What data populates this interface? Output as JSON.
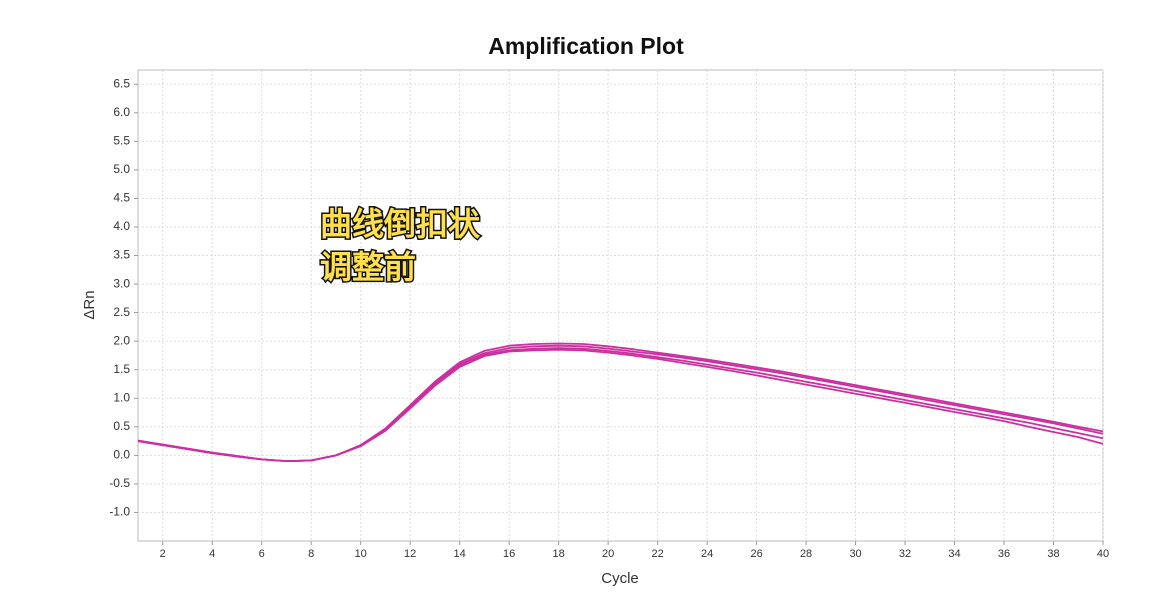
{
  "chart_data": {
    "type": "line",
    "title": "Amplification Plot",
    "xlabel": "Cycle",
    "ylabel": "ΔRn",
    "annotations": [
      "曲线倒扣状",
      "调整前"
    ],
    "x": [
      1,
      2,
      3,
      4,
      5,
      6,
      7,
      8,
      9,
      10,
      11,
      12,
      13,
      14,
      15,
      16,
      17,
      18,
      19,
      20,
      21,
      22,
      23,
      24,
      25,
      26,
      27,
      28,
      29,
      30,
      31,
      32,
      33,
      34,
      35,
      36,
      37,
      38,
      39,
      40
    ],
    "series": [
      {
        "color": "#cc2fa0",
        "values": [
          0.26,
          0.19,
          0.12,
          0.05,
          -0.01,
          -0.07,
          -0.1,
          -0.09,
          0.0,
          0.18,
          0.47,
          0.88,
          1.29,
          1.63,
          1.83,
          1.92,
          1.95,
          1.96,
          1.95,
          1.91,
          1.86,
          1.8,
          1.74,
          1.68,
          1.61,
          1.54,
          1.47,
          1.39,
          1.31,
          1.23,
          1.15,
          1.07,
          0.99,
          0.91,
          0.83,
          0.75,
          0.67,
          0.59,
          0.5,
          0.42
        ]
      },
      {
        "color": "#cc2fa0",
        "values": [
          0.25,
          0.18,
          0.11,
          0.04,
          -0.02,
          -0.07,
          -0.1,
          -0.09,
          0.0,
          0.17,
          0.45,
          0.86,
          1.26,
          1.6,
          1.79,
          1.88,
          1.91,
          1.92,
          1.91,
          1.87,
          1.82,
          1.77,
          1.71,
          1.65,
          1.58,
          1.51,
          1.44,
          1.36,
          1.28,
          1.2,
          1.12,
          1.04,
          0.96,
          0.88,
          0.8,
          0.72,
          0.64,
          0.56,
          0.47,
          0.38
        ]
      },
      {
        "color": "#cc2fa0",
        "values": [
          0.25,
          0.18,
          0.11,
          0.04,
          -0.02,
          -0.07,
          -0.1,
          -0.09,
          0.0,
          0.17,
          0.44,
          0.84,
          1.24,
          1.57,
          1.76,
          1.84,
          1.87,
          1.88,
          1.87,
          1.83,
          1.78,
          1.72,
          1.66,
          1.59,
          1.52,
          1.45,
          1.37,
          1.29,
          1.21,
          1.13,
          1.05,
          0.97,
          0.89,
          0.81,
          0.73,
          0.65,
          0.57,
          0.48,
          0.39,
          0.3
        ]
      },
      {
        "color": "#cc2fa0",
        "values": [
          0.25,
          0.18,
          0.11,
          0.04,
          -0.02,
          -0.07,
          -0.1,
          -0.09,
          0.0,
          0.16,
          0.43,
          0.82,
          1.22,
          1.55,
          1.74,
          1.82,
          1.84,
          1.85,
          1.84,
          1.8,
          1.75,
          1.69,
          1.62,
          1.55,
          1.48,
          1.4,
          1.32,
          1.24,
          1.16,
          1.08,
          1.0,
          0.92,
          0.84,
          0.76,
          0.68,
          0.6,
          0.5,
          0.41,
          0.32,
          0.2
        ]
      }
    ],
    "xlim": [
      1,
      40
    ],
    "xticks": [
      2,
      4,
      6,
      8,
      10,
      12,
      14,
      16,
      18,
      20,
      22,
      24,
      26,
      28,
      30,
      32,
      34,
      36,
      38,
      40
    ],
    "ylim": [
      -1.5,
      6.75
    ],
    "yticks": [
      {
        "value": -1,
        "label": "-1.0"
      },
      -0.5,
      {
        "value": 0,
        "label": "0.0"
      },
      0.5,
      {
        "value": 1,
        "label": "1.0"
      },
      1.5,
      {
        "value": 2,
        "label": "2.0"
      },
      2.5,
      {
        "value": 3,
        "label": "3.0"
      },
      3.5,
      {
        "value": 4,
        "label": "4.0"
      },
      4.5,
      {
        "value": 5,
        "label": "5.0"
      },
      5.5,
      {
        "value": 6,
        "label": "6.0"
      },
      6.5
    ],
    "grid": true
  }
}
